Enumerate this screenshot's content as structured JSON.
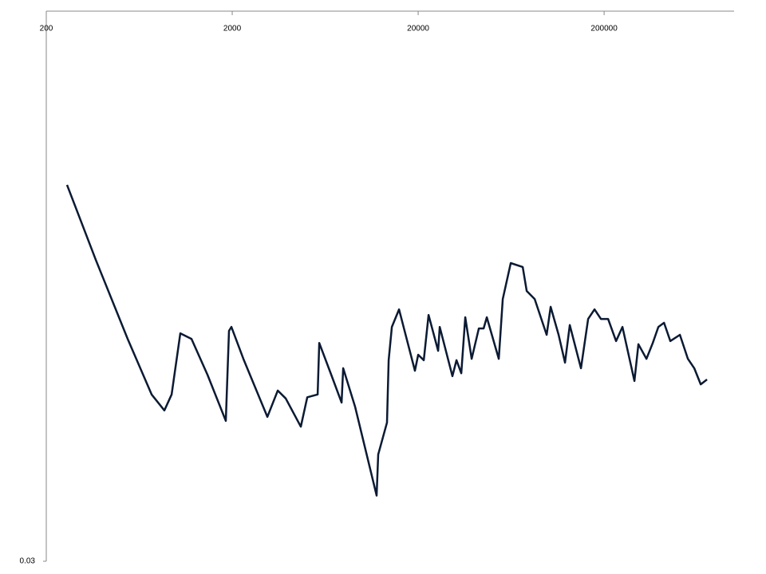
{
  "chart_data": {
    "type": "line",
    "xscale": "log",
    "yscale": "log",
    "xlim": [
      200,
      1000000
    ],
    "xticks": [
      200,
      2000,
      20000,
      200000
    ],
    "ylim": [
      0.03,
      0.3
    ],
    "yticks": [
      0.03
    ],
    "grid": false,
    "series": [
      {
        "color": "#0b1a33",
        "x": [
          258.6,
          369,
          548,
          737,
          863,
          944,
          1052,
          1208,
          1472,
          1848,
          1922,
          1980,
          2296,
          3090,
          3514,
          3878,
          4678,
          5064,
          5758,
          5874,
          6812,
          7746,
          7902,
          9160,
          11960,
          12200,
          13600,
          13880,
          14440,
          15780,
          19220,
          20000,
          21440,
          22740,
          25620,
          26120,
          30580,
          32140,
          34100,
          35820,
          38780,
          42400,
          44980,
          46780,
          54260,
          57000,
          62960,
          73000,
          76700,
          84640,
          98180,
          103140,
          113880,
          123240,
          130800,
          150180,
          164160,
          177640,
          192240,
          210140,
          232000,
          251000,
          291200,
          305800,
          337800,
          365400,
          391400,
          419800,
          454200,
          511200,
          564400,
          611000,
          661400,
          715400
        ],
        "values": [
          0.145,
          0.106,
          0.0761,
          0.0603,
          0.0564,
          0.0603,
          0.0779,
          0.0761,
          0.0655,
          0.054,
          0.0787,
          0.08,
          0.07,
          0.0549,
          0.0613,
          0.0593,
          0.0527,
          0.0596,
          0.0603,
          0.0748,
          0.0655,
          0.0583,
          0.0673,
          0.0573,
          0.0395,
          0.0469,
          0.0536,
          0.0696,
          0.08,
          0.0861,
          0.0666,
          0.0712,
          0.0696,
          0.0841,
          0.0724,
          0.08,
          0.0651,
          0.0696,
          0.0659,
          0.0833,
          0.07,
          0.0795,
          0.0795,
          0.0833,
          0.07,
          0.0899,
          0.1045,
          0.1028,
          0.093,
          0.0899,
          0.0774,
          0.087,
          0.0774,
          0.0689,
          0.0806,
          0.0673,
          0.0827,
          0.0861,
          0.0827,
          0.0827,
          0.0754,
          0.08,
          0.0638,
          0.0744,
          0.07,
          0.0748,
          0.08,
          0.0814,
          0.0754,
          0.0774,
          0.07,
          0.0673,
          0.0629,
          0.0642
        ]
      }
    ]
  }
}
